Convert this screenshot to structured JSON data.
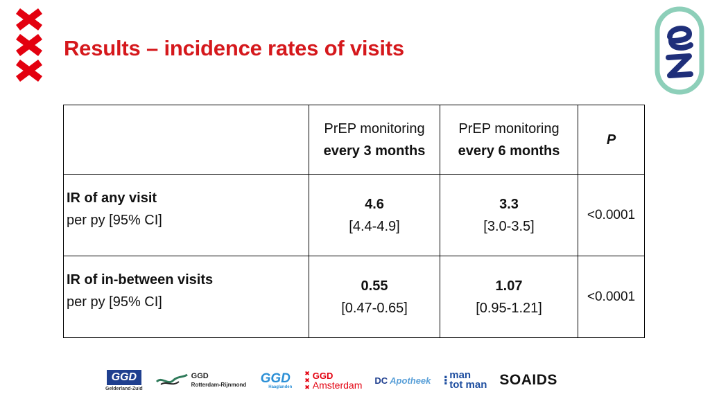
{
  "title": "Results – incidence rates of visits",
  "table": {
    "header": {
      "col1_line1": "PrEP monitoring",
      "col1_line2": "every 3 months",
      "col2_line1": "PrEP monitoring",
      "col2_line2": "every 6 months",
      "p_label": "P"
    },
    "rows": [
      {
        "label": "IR of any visit",
        "sublabel": "per py [95% CI]",
        "v1": "4.6",
        "ci1": "[4.4-4.9]",
        "v2": "3.3",
        "ci2": "[3.0-3.5]",
        "p": "<0.0001"
      },
      {
        "label": "IR of in-between visits",
        "sublabel": "per py [95% CI]",
        "v1": "0.55",
        "ci1": "[0.47-0.65]",
        "v2": "1.07",
        "ci2": "[0.95-1.21]",
        "p": "<0.0001"
      }
    ]
  },
  "logos": {
    "ggd_gz": "GGD",
    "ggd_gz_sub": "Gelderland-Zuid",
    "ggd_rr": "GGD",
    "ggd_rr_sub": "Rotterdam-Rijnmond",
    "ggd_hl": "GGD",
    "ggd_hl_sub": "Haaglanden",
    "ggd_ams_1": "GGD",
    "ggd_ams_2": "Amsterdam",
    "dc_1": "DC",
    "dc_2": "Apotheek",
    "mtm_1": "man",
    "mtm_2": "tot man",
    "soaids": "SOAIDS"
  },
  "colors": {
    "title_red": "#d5181c",
    "amsterdam_red": "#e3000f",
    "ez_teal": "#8dcfb9",
    "ez_navy": "#1f2f7a"
  }
}
